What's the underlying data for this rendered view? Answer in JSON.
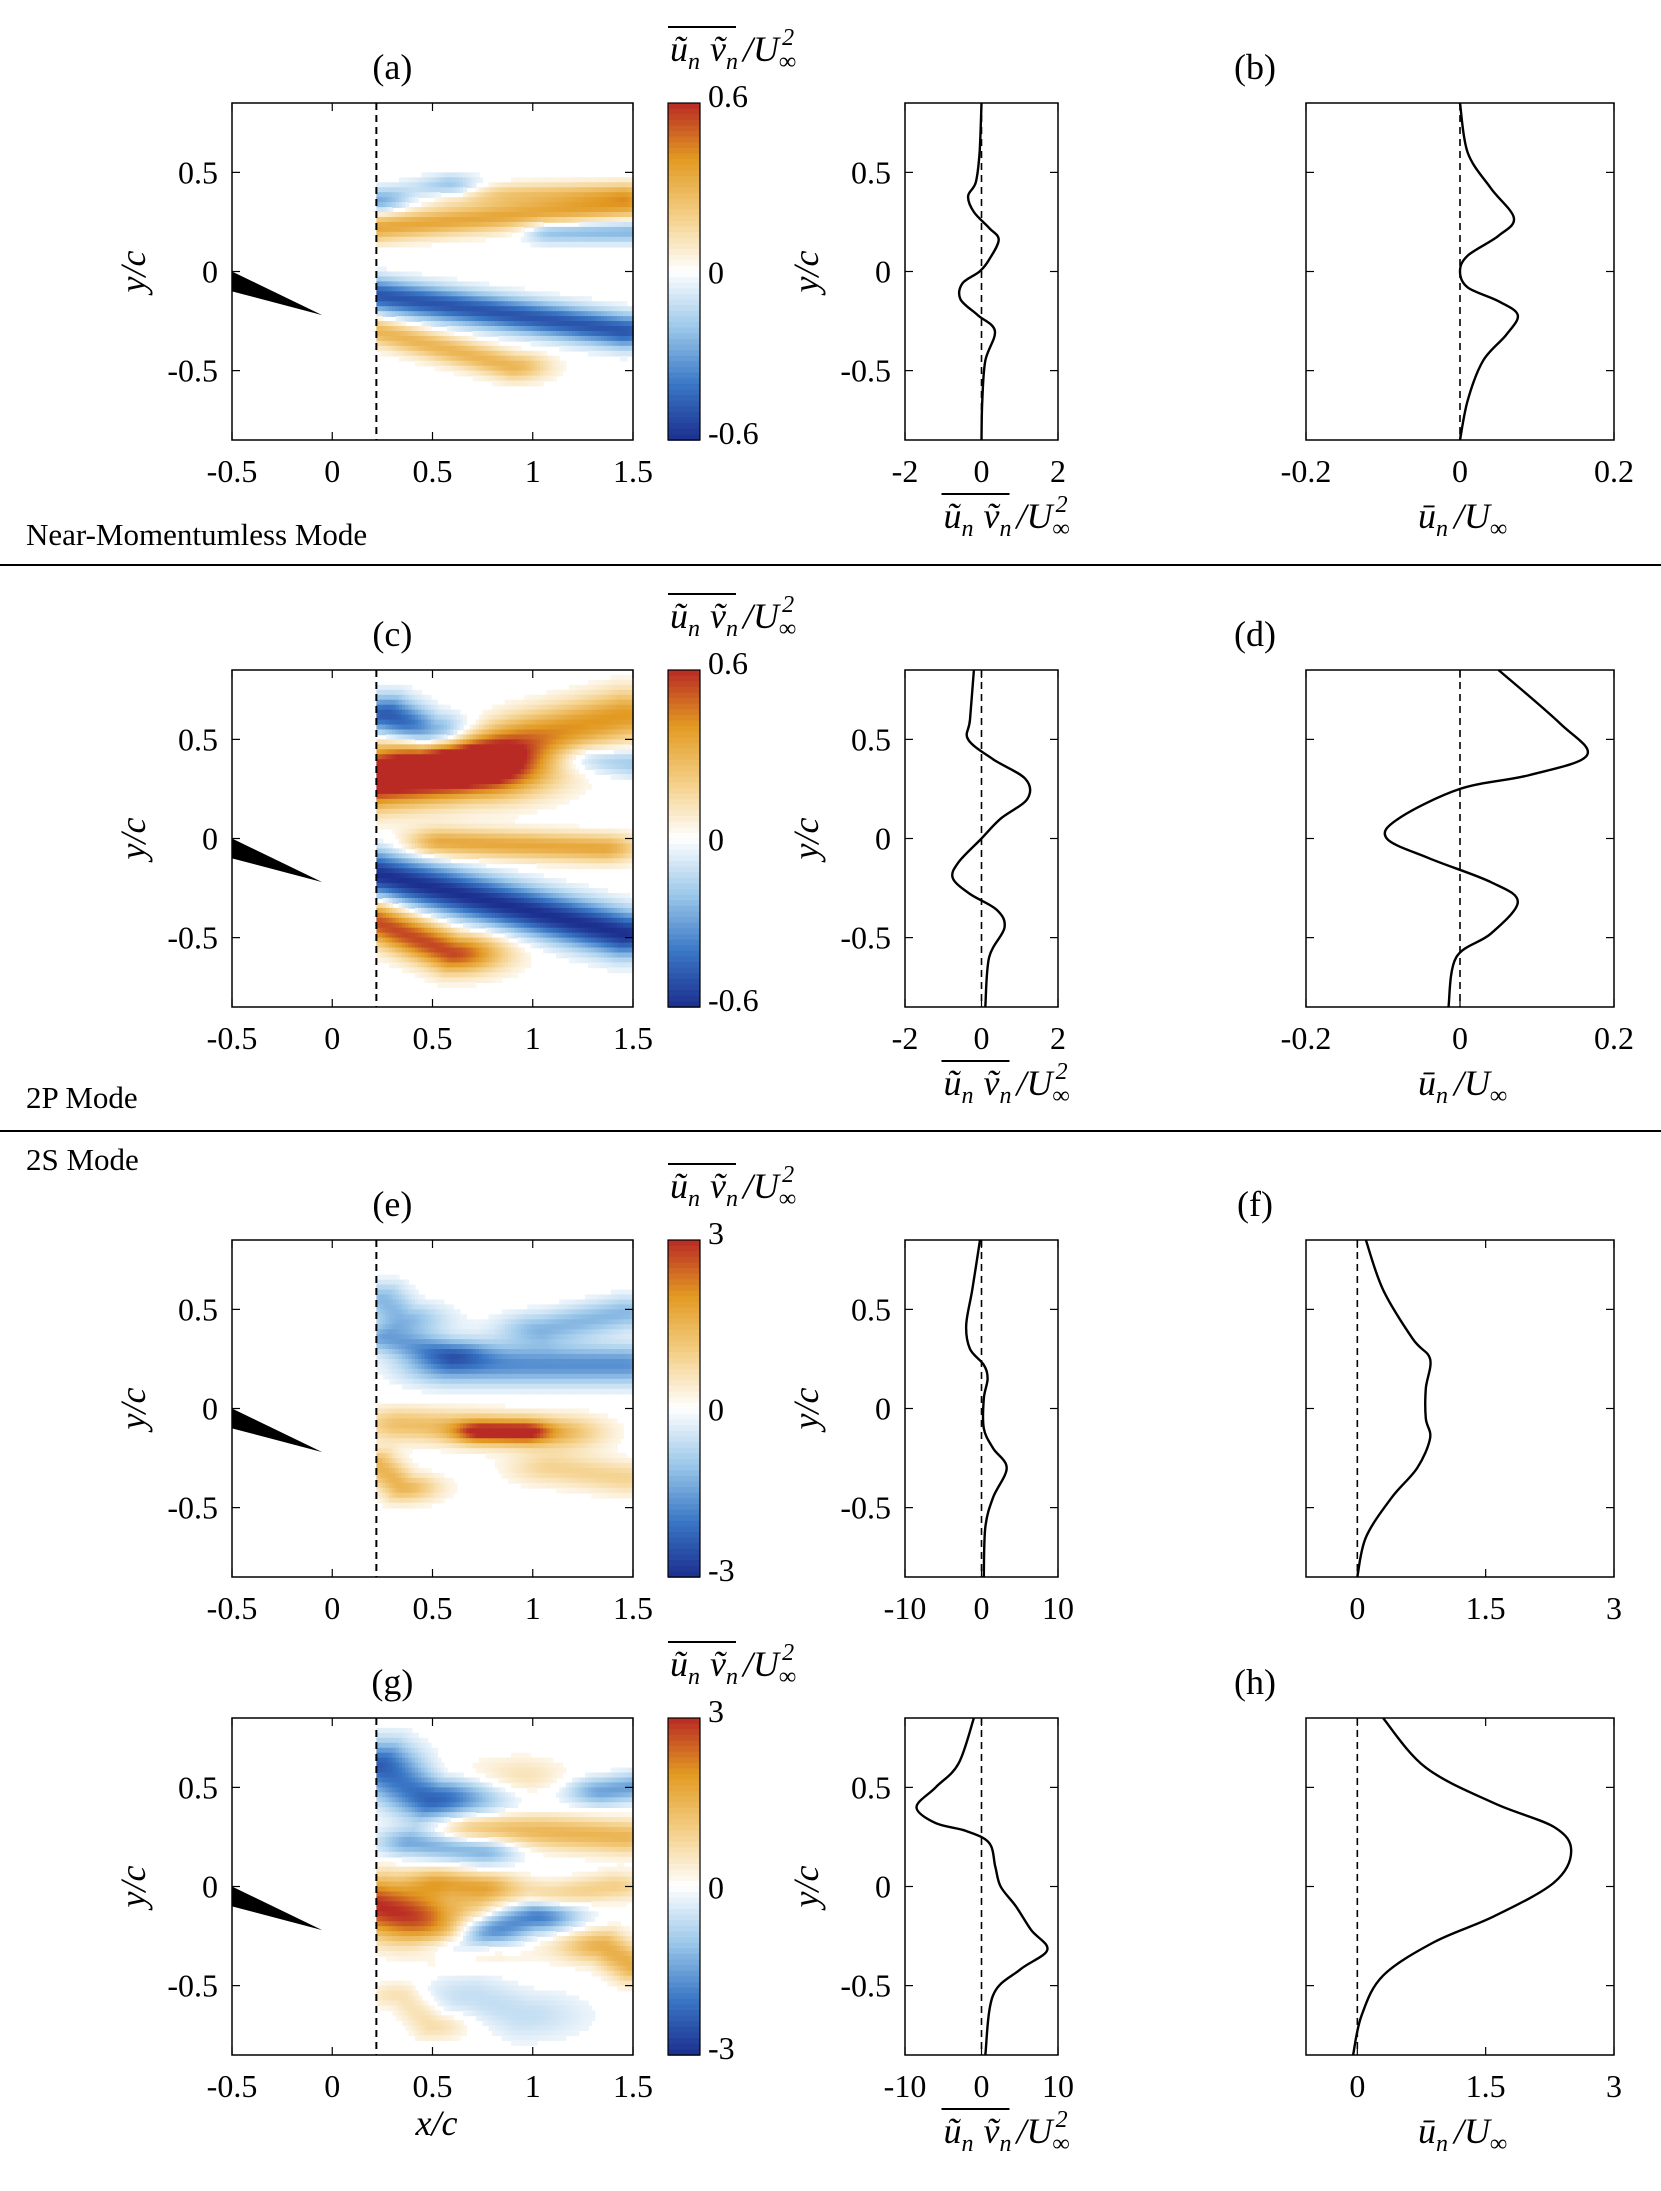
{
  "chart_data": [
    {
      "type": "heatmap",
      "panel": "a",
      "title": "(a)",
      "colorbar_label": "ũ_n ṽ_n / U∞²",
      "colorbar_ticks": [
        "0.6",
        "0",
        "-0.6"
      ],
      "clim": [
        -0.6,
        0.6
      ],
      "colormap": [
        "#1c2f8f",
        "#3a78c6",
        "#9cc8ea",
        "#ffffff",
        "#f4cf86",
        "#e29a22",
        "#b92a24"
      ],
      "xlim": [
        -0.5,
        1.5
      ],
      "ylim": [
        -0.85,
        0.85
      ],
      "xticks": [
        "-0.5",
        "0",
        "0.5",
        "1",
        "1.5"
      ],
      "yticks": [
        "0.5",
        "0",
        "-0.5"
      ],
      "ylabel": "y/c",
      "xlabel": "",
      "probe_x": 0.22,
      "blobs": [
        {
          "x0": 0.25,
          "y0": 0.36,
          "x1": 0.58,
          "y1": 0.42,
          "w": 0.045,
          "v": -0.3
        },
        {
          "x0": 0.45,
          "y0": 0.38,
          "x1": 1.45,
          "y1": 0.4,
          "w": 0.04,
          "v": 0.22
        },
        {
          "x0": 0.22,
          "y0": 0.22,
          "x1": 1.45,
          "y1": 0.33,
          "w": 0.05,
          "v": 0.35
        },
        {
          "x0": 1.1,
          "y0": 0.2,
          "x1": 1.5,
          "y1": 0.2,
          "w": 0.04,
          "v": -0.25
        },
        {
          "x0": 0.22,
          "y0": -0.12,
          "x1": 1.45,
          "y1": -0.3,
          "w": 0.06,
          "v": -0.5
        },
        {
          "x0": 0.22,
          "y0": -0.3,
          "x1": 0.9,
          "y1": -0.48,
          "w": 0.05,
          "v": 0.3
        }
      ]
    },
    {
      "type": "line",
      "panel": "b",
      "title": "(b)",
      "xlabel": "ũ_n ṽ_n / U∞²",
      "ylabel": "y/c",
      "xlim": [
        -2,
        2
      ],
      "ylim": [
        -0.85,
        0.85
      ],
      "xticks": [
        "-2",
        "0",
        "2"
      ],
      "yticks": [
        "0.5",
        "0",
        "-0.5"
      ],
      "x": [
        0,
        -0.05,
        -0.15,
        -0.35,
        -0.2,
        0.2,
        0.45,
        0.2,
        -0.05,
        -0.5,
        -0.55,
        -0.1,
        0.35,
        0.1,
        0.02,
        0
      ],
      "y": [
        0.85,
        0.6,
        0.45,
        0.38,
        0.3,
        0.22,
        0.16,
        0.06,
        0,
        -0.06,
        -0.14,
        -0.22,
        -0.3,
        -0.45,
        -0.65,
        -0.85
      ]
    },
    {
      "type": "line",
      "panel": "b2",
      "title": "",
      "xlabel": "ū_n / U∞",
      "ylabel": "",
      "xlim": [
        -0.2,
        0.2
      ],
      "ylim": [
        -0.85,
        0.85
      ],
      "xticks": [
        "-0.2",
        "0",
        "0.2"
      ],
      "yticks": [],
      "x": [
        0,
        0.01,
        0.04,
        0.07,
        0.05,
        0.01,
        0,
        0.01,
        0.05,
        0.075,
        0.06,
        0.03,
        0.01,
        0
      ],
      "y": [
        0.85,
        0.6,
        0.42,
        0.27,
        0.18,
        0.08,
        0,
        -0.08,
        -0.15,
        -0.22,
        -0.32,
        -0.45,
        -0.65,
        -0.85
      ]
    },
    {
      "type": "heatmap",
      "panel": "c",
      "title": "(c)",
      "colorbar_label": "ũ_n ṽ_n / U∞²",
      "colorbar_ticks": [
        "0.6",
        "0",
        "-0.6"
      ],
      "clim": [
        -0.6,
        0.6
      ],
      "colormap": [
        "#1c2f8f",
        "#3a78c6",
        "#9cc8ea",
        "#ffffff",
        "#f4cf86",
        "#e29a22",
        "#b92a24"
      ],
      "xlim": [
        -0.5,
        1.5
      ],
      "ylim": [
        -0.85,
        0.85
      ],
      "xticks": [
        "-0.5",
        "0",
        "0.5",
        "1",
        "1.5"
      ],
      "yticks": [
        "0.5",
        "0",
        "-0.5"
      ],
      "ylabel": "y/c",
      "xlabel": "",
      "probe_x": 0.22,
      "blobs": [
        {
          "x0": 0.28,
          "y0": 0.62,
          "x1": 0.48,
          "y1": 0.52,
          "w": 0.07,
          "v": -0.5
        },
        {
          "x0": 0.22,
          "y0": 0.3,
          "x1": 0.7,
          "y1": 0.35,
          "w": 0.1,
          "v": 0.75
        },
        {
          "x0": 0.6,
          "y0": 0.42,
          "x1": 1.45,
          "y1": 0.62,
          "w": 0.09,
          "v": 0.4
        },
        {
          "x0": 1.3,
          "y0": 0.4,
          "x1": 1.5,
          "y1": 0.38,
          "w": 0.05,
          "v": -0.2
        },
        {
          "x0": 0.55,
          "y0": -0.02,
          "x1": 1.35,
          "y1": -0.05,
          "w": 0.05,
          "v": 0.35
        },
        {
          "x0": 0.22,
          "y0": -0.18,
          "x1": 1.45,
          "y1": -0.48,
          "w": 0.08,
          "v": -0.6
        },
        {
          "x0": 0.22,
          "y0": -0.42,
          "x1": 0.6,
          "y1": -0.58,
          "w": 0.07,
          "v": 0.55
        }
      ]
    },
    {
      "type": "line",
      "panel": "d",
      "title": "(d)",
      "xlabel": "ũ_n ṽ_n / U∞²",
      "ylabel": "y/c",
      "xlim": [
        -2,
        2
      ],
      "ylim": [
        -0.85,
        0.85
      ],
      "xticks": [
        "-2",
        "0",
        "2"
      ],
      "yticks": [
        "0.5",
        "0",
        "-0.5"
      ],
      "x": [
        -0.2,
        -0.3,
        -0.35,
        0.3,
        1.15,
        1.2,
        0.5,
        0,
        -0.6,
        -0.75,
        -0.3,
        0.4,
        0.6,
        0.2,
        0.1
      ],
      "y": [
        0.85,
        0.6,
        0.5,
        0.4,
        0.3,
        0.2,
        0.1,
        0,
        -0.12,
        -0.2,
        -0.28,
        -0.36,
        -0.45,
        -0.6,
        -0.85
      ]
    },
    {
      "type": "line",
      "panel": "d2",
      "title": "",
      "xlabel": "ū_n / U∞",
      "ylabel": "",
      "xlim": [
        -0.2,
        0.2
      ],
      "ylim": [
        -0.85,
        0.85
      ],
      "xticks": [
        "-0.2",
        "0",
        "0.2"
      ],
      "yticks": [],
      "x": [
        0.05,
        0.13,
        0.165,
        0.09,
        0,
        -0.08,
        -0.095,
        -0.04,
        0.04,
        0.075,
        0.04,
        -0.005,
        -0.015
      ],
      "y": [
        0.85,
        0.58,
        0.42,
        0.32,
        0.25,
        0.1,
        0,
        -0.1,
        -0.22,
        -0.32,
        -0.48,
        -0.6,
        -0.85
      ]
    },
    {
      "type": "heatmap",
      "panel": "e",
      "title": "(e)",
      "colorbar_label": "ũ_n ṽ_n / U∞²",
      "colorbar_ticks": [
        "3",
        "0",
        "-3"
      ],
      "clim": [
        -3,
        3
      ],
      "colormap": [
        "#1c2f8f",
        "#3a78c6",
        "#9cc8ea",
        "#ffffff",
        "#f4cf86",
        "#e29a22",
        "#b92a24"
      ],
      "xlim": [
        -0.5,
        1.5
      ],
      "ylim": [
        -0.85,
        0.85
      ],
      "xticks": [
        "-0.5",
        "0",
        "0.5",
        "1",
        "1.5"
      ],
      "yticks": [
        "0.5",
        "0",
        "-0.5"
      ],
      "ylabel": "y/c",
      "xlabel": "",
      "probe_x": 0.22,
      "blobs": [
        {
          "x0": 0.25,
          "y0": 0.55,
          "x1": 0.35,
          "y1": 0.45,
          "w": 0.06,
          "v": -1.2
        },
        {
          "x0": 0.25,
          "y0": 0.35,
          "x1": 0.6,
          "y1": 0.28,
          "w": 0.05,
          "v": -1.2
        },
        {
          "x0": 0.6,
          "y0": 0.22,
          "x1": 1.45,
          "y1": 0.22,
          "w": 0.07,
          "v": -1.7
        },
        {
          "x0": 1.05,
          "y0": 0.4,
          "x1": 1.45,
          "y1": 0.48,
          "w": 0.06,
          "v": -1.2
        },
        {
          "x0": 0.35,
          "y0": -0.08,
          "x1": 1.15,
          "y1": -0.12,
          "w": 0.06,
          "v": 1.3
        },
        {
          "x0": 0.75,
          "y0": -0.12,
          "x1": 0.95,
          "y1": -0.12,
          "w": 0.04,
          "v": 2.2
        },
        {
          "x0": 0.22,
          "y0": -0.28,
          "x1": 0.35,
          "y1": -0.4,
          "w": 0.05,
          "v": 1.5
        },
        {
          "x0": 1.1,
          "y0": -0.3,
          "x1": 1.45,
          "y1": -0.35,
          "w": 0.06,
          "v": 0.9
        }
      ]
    },
    {
      "type": "line",
      "panel": "f",
      "title": "(f)",
      "xlabel": "",
      "ylabel": "y/c",
      "xlim": [
        -10,
        10
      ],
      "ylim": [
        -0.85,
        0.85
      ],
      "xticks": [
        "-10",
        "0",
        "10"
      ],
      "yticks": [
        "0.5",
        "0",
        "-0.5"
      ],
      "x": [
        -0.2,
        -1.2,
        -2,
        -1.5,
        0.3,
        0.8,
        0.3,
        0.3,
        1.5,
        3.3,
        1.5,
        0.5,
        0.3
      ],
      "y": [
        0.85,
        0.6,
        0.42,
        0.3,
        0.22,
        0.15,
        0.05,
        -0.1,
        -0.2,
        -0.3,
        -0.45,
        -0.6,
        -0.85
      ]
    },
    {
      "type": "line",
      "panel": "f2",
      "title": "",
      "xlabel": "",
      "ylabel": "",
      "xlim": [
        -0.6,
        3
      ],
      "ylim": [
        -0.85,
        0.85
      ],
      "xticks": [
        "0",
        "1.5",
        "3"
      ],
      "yticks": [],
      "x": [
        0.1,
        0.3,
        0.65,
        0.85,
        0.8,
        0.8,
        0.85,
        0.7,
        0.4,
        0.1,
        0
      ],
      "y": [
        0.85,
        0.6,
        0.35,
        0.25,
        0.1,
        -0.05,
        -0.15,
        -0.3,
        -0.45,
        -0.65,
        -0.85
      ]
    },
    {
      "type": "heatmap",
      "panel": "g",
      "title": "(g)",
      "colorbar_label": "ũ_n ṽ_n / U∞²",
      "colorbar_ticks": [
        "3",
        "0",
        "-3"
      ],
      "clim": [
        -3,
        3
      ],
      "colormap": [
        "#1c2f8f",
        "#3a78c6",
        "#9cc8ea",
        "#ffffff",
        "#f4cf86",
        "#e29a22",
        "#b92a24"
      ],
      "xlim": [
        -0.5,
        1.5
      ],
      "ylim": [
        -0.85,
        0.85
      ],
      "xticks": [
        "-0.5",
        "0",
        "0.5",
        "1",
        "1.5"
      ],
      "yticks": [
        "0.5",
        "0",
        "-0.5"
      ],
      "ylabel": "y/c",
      "xlabel": "x/c",
      "probe_x": 0.22,
      "blobs": [
        {
          "x0": 0.25,
          "y0": 0.6,
          "x1": 0.5,
          "y1": 0.45,
          "w": 0.09,
          "v": -2.6
        },
        {
          "x0": 0.5,
          "y0": 0.55,
          "x1": 0.9,
          "y1": 0.55,
          "w": 0.07,
          "v": 0.8
        },
        {
          "x0": 0.7,
          "y0": 0.3,
          "x1": 1.45,
          "y1": 0.25,
          "w": 0.06,
          "v": 1.5
        },
        {
          "x0": 1.35,
          "y0": 0.48,
          "x1": 1.5,
          "y1": 0.5,
          "w": 0.05,
          "v": -1.5
        },
        {
          "x0": 0.4,
          "y0": 0.22,
          "x1": 0.75,
          "y1": 0.18,
          "w": 0.05,
          "v": -1.4
        },
        {
          "x0": 0.22,
          "y0": -0.1,
          "x1": 0.55,
          "y1": -0.2,
          "w": 0.1,
          "v": 3
        },
        {
          "x0": 0.55,
          "y0": 0.02,
          "x1": 0.75,
          "y1": 0.0,
          "w": 0.05,
          "v": 1.5
        },
        {
          "x0": 0.75,
          "y0": -0.2,
          "x1": 1.0,
          "y1": -0.15,
          "w": 0.06,
          "v": -2.5
        },
        {
          "x0": 0.6,
          "y0": -0.3,
          "x1": 0.8,
          "y1": -0.25,
          "w": 0.05,
          "v": -1.5
        },
        {
          "x0": 1.1,
          "y0": -0.05,
          "x1": 1.4,
          "y1": 0.0,
          "w": 0.05,
          "v": 1.0
        },
        {
          "x0": 1.35,
          "y0": -0.3,
          "x1": 1.5,
          "y1": -0.4,
          "w": 0.06,
          "v": 1.6
        },
        {
          "x0": 0.7,
          "y0": -0.55,
          "x1": 0.95,
          "y1": -0.65,
          "w": 0.09,
          "v": -0.6
        },
        {
          "x0": 0.35,
          "y0": -0.55,
          "x1": 0.5,
          "y1": -0.7,
          "w": 0.05,
          "v": 0.8
        }
      ]
    },
    {
      "type": "line",
      "panel": "h",
      "title": "(h)",
      "xlabel": "ũ_n ṽ_n / U∞²",
      "ylabel": "y/c",
      "xlim": [
        -10,
        10
      ],
      "ylim": [
        -0.85,
        0.85
      ],
      "xticks": [
        "-10",
        "0",
        "10"
      ],
      "yticks": [
        "0.5",
        "0",
        "-0.5"
      ],
      "x": [
        -1,
        -3,
        -6,
        -8.5,
        -6,
        -2,
        1,
        1.8,
        2.5,
        4.5,
        6.5,
        8.6,
        5,
        1.5,
        0.5
      ],
      "y": [
        0.85,
        0.62,
        0.5,
        0.4,
        0.32,
        0.28,
        0.22,
        0.1,
        0,
        -0.1,
        -0.22,
        -0.32,
        -0.42,
        -0.55,
        -0.85
      ]
    },
    {
      "type": "line",
      "panel": "h2",
      "title": "",
      "xlabel": "ū_n / U∞",
      "ylabel": "",
      "xlim": [
        -0.6,
        3
      ],
      "ylim": [
        -0.85,
        0.85
      ],
      "xticks": [
        "0",
        "1.5",
        "3"
      ],
      "yticks": [],
      "x": [
        0.3,
        0.8,
        1.6,
        2.3,
        2.5,
        2.3,
        1.6,
        0.9,
        0.3,
        0.05,
        -0.05
      ],
      "y": [
        0.85,
        0.6,
        0.42,
        0.3,
        0.18,
        0.02,
        -0.15,
        -0.28,
        -0.45,
        -0.65,
        -0.85
      ]
    }
  ],
  "modes": {
    "near_momentumless": "Near-Momentumless Mode",
    "two_p": "2P Mode",
    "two_s": "2S Mode"
  }
}
